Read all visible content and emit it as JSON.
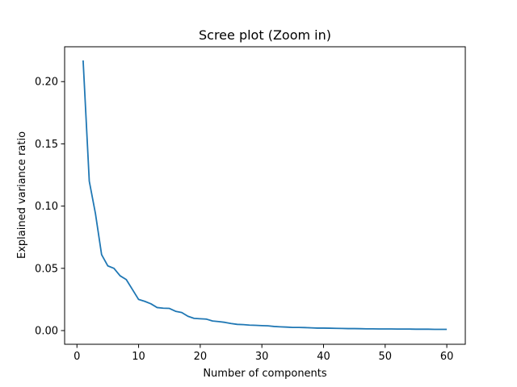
{
  "chart_data": {
    "type": "line",
    "title": "Scree plot (Zoom in)",
    "xlabel": "Number of components",
    "ylabel": "Explained variance ratio",
    "xlim": [
      -2,
      63
    ],
    "ylim": [
      -0.011,
      0.228
    ],
    "xticks": [
      0,
      10,
      20,
      30,
      40,
      50,
      60
    ],
    "xtick_labels": [
      "0",
      "10",
      "20",
      "30",
      "40",
      "50",
      "60"
    ],
    "yticks": [
      0.0,
      0.05,
      0.1,
      0.15,
      0.2
    ],
    "ytick_labels": [
      "0.00",
      "0.05",
      "0.10",
      "0.15",
      "0.20"
    ],
    "grid": false,
    "series": [
      {
        "color": "#1f77b4",
        "x": [
          1,
          2,
          3,
          4,
          5,
          6,
          7,
          8,
          9,
          10,
          11,
          12,
          13,
          14,
          15,
          16,
          17,
          18,
          19,
          20,
          21,
          22,
          23,
          24,
          25,
          26,
          27,
          28,
          29,
          30,
          31,
          32,
          33,
          34,
          35,
          36,
          37,
          38,
          39,
          40,
          41,
          42,
          43,
          44,
          45,
          46,
          47,
          48,
          49,
          50,
          51,
          52,
          53,
          54,
          55,
          56,
          57,
          58,
          59,
          60
        ],
        "values": [
          0.217,
          0.12,
          0.094,
          0.061,
          0.052,
          0.05,
          0.044,
          0.041,
          0.033,
          0.025,
          0.0235,
          0.0215,
          0.0185,
          0.018,
          0.0178,
          0.0155,
          0.0145,
          0.0115,
          0.0098,
          0.0095,
          0.0092,
          0.0077,
          0.0072,
          0.0066,
          0.0057,
          0.005,
          0.0048,
          0.0044,
          0.0042,
          0.004,
          0.0038,
          0.0033,
          0.003,
          0.0028,
          0.0025,
          0.0025,
          0.0024,
          0.0022,
          0.002,
          0.002,
          0.0019,
          0.0018,
          0.0017,
          0.0016,
          0.0016,
          0.0015,
          0.0014,
          0.0014,
          0.0013,
          0.0013,
          0.0013,
          0.0012,
          0.0012,
          0.0012,
          0.0011,
          0.0011,
          0.0011,
          0.001,
          0.001,
          0.001
        ]
      }
    ]
  }
}
